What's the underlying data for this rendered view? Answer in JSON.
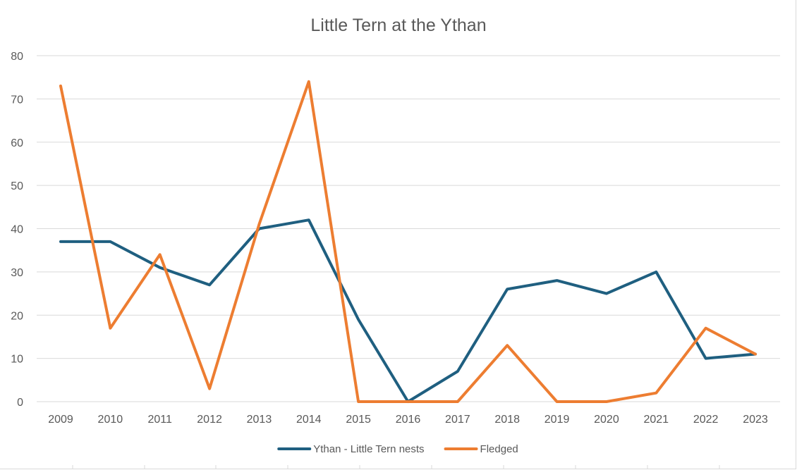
{
  "chart_data": {
    "type": "line",
    "title": "Little Tern at the Ythan",
    "xlabel": "",
    "ylabel": "",
    "categories": [
      "2009",
      "2010",
      "2011",
      "2012",
      "2013",
      "2014",
      "2015",
      "2016",
      "2017",
      "2018",
      "2019",
      "2020",
      "2021",
      "2022",
      "2023"
    ],
    "ylim": [
      0,
      80
    ],
    "yticks": [
      0,
      10,
      20,
      30,
      40,
      50,
      60,
      70,
      80
    ],
    "grid": true,
    "legend_position": "bottom",
    "series": [
      {
        "name": "Ythan - Little Tern nests",
        "color": "#1f5f80",
        "values": [
          37,
          37,
          31,
          27,
          40,
          42,
          19,
          0,
          7,
          26,
          28,
          25,
          30,
          10,
          11
        ]
      },
      {
        "name": "Fledged",
        "color": "#ed7d31",
        "values": [
          73,
          17,
          34,
          3,
          41,
          74,
          0,
          0,
          0,
          13,
          0,
          0,
          2,
          17,
          11
        ]
      }
    ]
  }
}
